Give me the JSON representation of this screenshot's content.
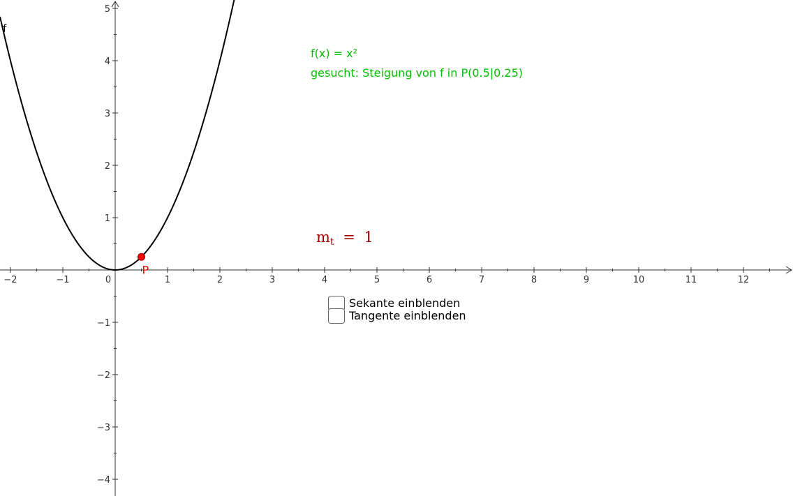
{
  "colors": {
    "background": "#ffffff",
    "axis": "#333333",
    "curve": "#000000",
    "point": "#ff0000",
    "point_label": "#ff0000",
    "info_text": "#00c000",
    "slope_text": "#a00000"
  },
  "function": {
    "label": "f",
    "expression": "x^2"
  },
  "point": {
    "label": "P",
    "x": 0.5,
    "y": 0.25
  },
  "info": {
    "definition": "f(x) = x²",
    "task": "gesucht: Steigung von f in P(0.5|0.25)"
  },
  "slope": {
    "symbol": "m",
    "subscript": "t",
    "equals": "=",
    "value": "1"
  },
  "checkboxes": [
    {
      "label": "Sekante einblenden",
      "checked": false
    },
    {
      "label": "Tangente einblenden",
      "checked": false
    }
  ],
  "chart_data": {
    "type": "line",
    "series": [
      {
        "name": "f",
        "expression": "x^2"
      }
    ],
    "xlim": [
      -2.2,
      12.9
    ],
    "ylim": [
      -4.3,
      5.1
    ],
    "x_ticks": [
      -2,
      -1,
      0,
      1,
      2,
      3,
      4,
      5,
      6,
      7,
      8,
      9,
      10,
      11,
      12
    ],
    "y_ticks": [
      -4,
      -3,
      -2,
      -1,
      1,
      2,
      3,
      4,
      5
    ],
    "x_tick_labels": [
      "−2",
      "−1",
      "0",
      "1",
      "2",
      "3",
      "4",
      "5",
      "6",
      "7",
      "8",
      "9",
      "10",
      "11",
      "12"
    ],
    "y_tick_labels": [
      "−4",
      "−3",
      "−2",
      "−1",
      "1",
      "2",
      "3",
      "4",
      "5"
    ],
    "grid": false
  }
}
